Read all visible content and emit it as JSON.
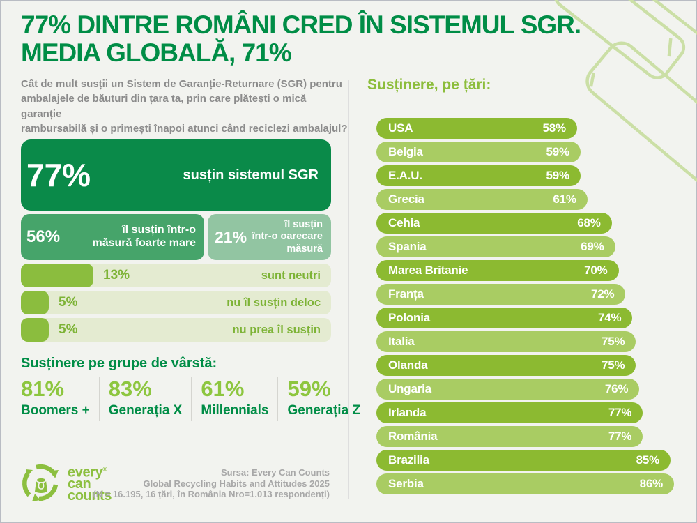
{
  "title": {
    "text": "77% DINTRE ROMÂNI CRED ÎN SISTEMUL SGR.\nMEDIA GLOBALĂ, 71%"
  },
  "question": "Cât de mult susții un Sistem de Garanție-Returnare (SGR) pentru\nambalajele de băuturi din țara ta, prin care plătești o mică garanție\nrambursabilă și o primești înapoi atunci când reciclezi ambalajul?",
  "support_breakdown": {
    "main": {
      "value_label": "77%",
      "label": "susțin sistemul SGR",
      "pct": 77
    },
    "sub": [
      {
        "value_label": "56%",
        "label": "îl susțin într-o\nmăsură foarte mare",
        "pct": 56
      },
      {
        "value_label": "21%",
        "label": "îl susțin\nîntr-o oarecare\nmăsură",
        "pct": 21
      }
    ],
    "rows": [
      {
        "value_label": "13%",
        "label": "sunt neutri",
        "pct": 13
      },
      {
        "value_label": "5%",
        "label": "nu îl susțin deloc",
        "pct": 5
      },
      {
        "value_label": "5%",
        "label": "nu prea îl susțin",
        "pct": 5
      }
    ]
  },
  "age_section": {
    "heading": "Susținere pe grupe de vârstă:",
    "groups": [
      {
        "value_label": "81%",
        "label": "Boomers +"
      },
      {
        "value_label": "83%",
        "label": "Generația X"
      },
      {
        "value_label": "61%",
        "label": "Millennials"
      },
      {
        "value_label": "59%",
        "label": "Generația Z"
      }
    ]
  },
  "countries_section": {
    "heading": "Susținere, pe țări:",
    "items": [
      {
        "name": "USA",
        "pct": 58,
        "label": "58%"
      },
      {
        "name": "Belgia",
        "pct": 59,
        "label": "59%"
      },
      {
        "name": "E.A.U.",
        "pct": 59,
        "label": "59%"
      },
      {
        "name": "Grecia",
        "pct": 61,
        "label": "61%"
      },
      {
        "name": "Cehia",
        "pct": 68,
        "label": "68%"
      },
      {
        "name": "Spania",
        "pct": 69,
        "label": "69%"
      },
      {
        "name": "Marea Britanie",
        "pct": 70,
        "label": "70%"
      },
      {
        "name": "Franța",
        "pct": 72,
        "label": "72%"
      },
      {
        "name": "Polonia",
        "pct": 74,
        "label": "74%"
      },
      {
        "name": "Italia",
        "pct": 75,
        "label": "75%"
      },
      {
        "name": "Olanda",
        "pct": 75,
        "label": "75%"
      },
      {
        "name": "Ungaria",
        "pct": 76,
        "label": "76%"
      },
      {
        "name": "Irlanda",
        "pct": 77,
        "label": "77%"
      },
      {
        "name": "România",
        "pct": 77,
        "label": "77%"
      },
      {
        "name": "Brazilia",
        "pct": 85,
        "label": "85%"
      },
      {
        "name": "Serbia",
        "pct": 86,
        "label": "86%"
      }
    ]
  },
  "logo": {
    "line1": "every",
    "reg": "®",
    "line2": "can",
    "line3": "counts"
  },
  "source": "Sursa: Every Can Counts\nGlobal Recycling Habits and Attitudes 2025\n(N = 16.195, 16 țări, în România Nro=1.013 respondenți)",
  "colors": {
    "background": "#f2f3ef",
    "title_green": "#008d46",
    "bar_dark_green": "#0a8a49",
    "bar_medium_green": "#46a46a",
    "bar_sage_green": "#92c5a2",
    "track_pale_green": "#e4ebd1",
    "fill_yellow_green": "#8bbd3e",
    "country_bar_dark": "#8cba31",
    "country_bar_light": "#a9cc63",
    "text_gray": "#8b8b8b",
    "source_gray": "#a8a8a8"
  },
  "chart_data": [
    {
      "type": "bar",
      "title": "77% dintre români cred în sistemul SGR. Media globală, 71%",
      "categories": [
        "susțin sistemul SGR",
        "îl susțin într-o măsură foarte mare",
        "îl susțin într-o oarecare măsură",
        "sunt neutri",
        "nu îl susțin deloc",
        "nu prea îl susțin"
      ],
      "values": [
        77,
        56,
        21,
        13,
        5,
        5
      ],
      "xlabel": "",
      "ylabel": "",
      "unit": "%",
      "legend": false,
      "grid": false
    },
    {
      "type": "bar",
      "title": "Susținere pe grupe de vârstă",
      "categories": [
        "Boomers +",
        "Generația X",
        "Millennials",
        "Generația Z"
      ],
      "values": [
        81,
        83,
        61,
        59
      ],
      "unit": "%",
      "legend": false,
      "grid": false
    },
    {
      "type": "bar",
      "title": "Susținere, pe țări",
      "categories": [
        "USA",
        "Belgia",
        "E.A.U.",
        "Grecia",
        "Cehia",
        "Spania",
        "Marea Britanie",
        "Franța",
        "Polonia",
        "Italia",
        "Olanda",
        "Ungaria",
        "Irlanda",
        "România",
        "Brazilia",
        "Serbia"
      ],
      "values": [
        58,
        59,
        59,
        61,
        68,
        69,
        70,
        72,
        74,
        75,
        75,
        76,
        77,
        77,
        85,
        86
      ],
      "unit": "%",
      "xlim": [
        0,
        86
      ],
      "legend": false,
      "grid": false,
      "orientation": "horizontal"
    }
  ]
}
